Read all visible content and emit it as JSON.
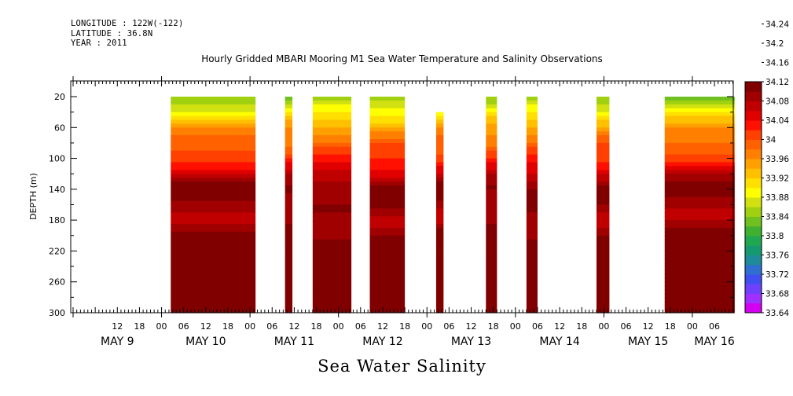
{
  "header": {
    "longitude": "LONGITUDE : 122W(-122)",
    "latitude": "LATITUDE : 36.8N",
    "year": "YEAR : 2011",
    "title": "Hourly Gridded MBARI Mooring M1 Sea Water Temperature and Salinity Observations"
  },
  "footer": {
    "subtitle": "Sea Water Salinity"
  },
  "chart_data": {
    "type": "heatmap",
    "title": "Hourly Gridded MBARI Mooring M1 Sea Water Temperature and Salinity Observations",
    "subtitle": "Sea Water Salinity",
    "ylabel": "DEPTH (m)",
    "xlabel": "",
    "y_inverted": true,
    "ylim": [
      300,
      10
    ],
    "y_ticks": [
      20,
      60,
      100,
      140,
      180,
      220,
      260,
      300
    ],
    "x_hours_range": [
      0,
      179
    ],
    "hour_tick_labels": [
      "12",
      "18",
      "00",
      "06",
      "12",
      "18",
      "00",
      "06",
      "12",
      "18",
      "00",
      "06",
      "12",
      "18",
      "00",
      "06",
      "12",
      "18",
      "00",
      "06",
      "12",
      "18",
      "00",
      "06",
      "12",
      "18",
      "00",
      "06"
    ],
    "hour_tick_hours": [
      12,
      18,
      24,
      30,
      36,
      42,
      48,
      54,
      60,
      66,
      72,
      78,
      84,
      90,
      96,
      102,
      108,
      114,
      120,
      126,
      132,
      138,
      144,
      150,
      156,
      162,
      168,
      174
    ],
    "day_labels": [
      "MAY 9",
      "MAY 10",
      "MAY 11",
      "MAY 12",
      "MAY 13",
      "MAY 14",
      "MAY 15",
      "MAY 16"
    ],
    "day_label_hours": [
      12,
      36,
      60,
      84,
      108,
      132,
      156,
      174
    ],
    "colorbar": {
      "labels": [
        "34.24",
        "34.2",
        "34.16",
        "34.12",
        "34.08",
        "34.04",
        "34",
        "33.96",
        "33.92",
        "33.88",
        "33.84",
        "33.8",
        "33.76",
        "33.72",
        "33.68",
        "33.64"
      ],
      "min": 33.64,
      "max": 34.26,
      "step": 0.02,
      "colors": [
        "#d400f0",
        "#a030ff",
        "#7040ff",
        "#4050f0",
        "#2f6fd0",
        "#1f8a9a",
        "#159a70",
        "#20a850",
        "#40b030",
        "#70c020",
        "#a0d010",
        "#d0e010",
        "#ffff00",
        "#ffe000",
        "#ffc000",
        "#ffa000",
        "#ff8000",
        "#ff6000",
        "#ff4000",
        "#ff1000",
        "#e00000",
        "#c00000",
        "#a00000",
        "#800000"
      ]
    },
    "data_segments": [
      {
        "start_hour": 26.5,
        "end_hour": 49.5,
        "top_depth": 20
      },
      {
        "start_hour": 57.5,
        "end_hour": 59.5,
        "top_depth": 20
      },
      {
        "start_hour": 65,
        "end_hour": 75.5,
        "top_depth": 20
      },
      {
        "start_hour": 80.5,
        "end_hour": 90,
        "top_depth": 20
      },
      {
        "start_hour": 98.5,
        "end_hour": 100.5,
        "top_depth": 40
      },
      {
        "start_hour": 112,
        "end_hour": 115,
        "top_depth": 20
      },
      {
        "start_hour": 123,
        "end_hour": 126,
        "top_depth": 20
      },
      {
        "start_hour": 142,
        "end_hour": 145.5,
        "top_depth": 20
      },
      {
        "start_hour": 160.5,
        "end_hour": 179.5,
        "top_depth": 20
      }
    ],
    "typical_profile": [
      {
        "depth": 20,
        "value": 33.84
      },
      {
        "depth": 60,
        "value": 33.95
      },
      {
        "depth": 100,
        "value": 34.02
      },
      {
        "depth": 140,
        "value": 34.11
      },
      {
        "depth": 180,
        "value": 34.08
      },
      {
        "depth": 220,
        "value": 34.13
      },
      {
        "depth": 260,
        "value": 34.21
      },
      {
        "depth": 300,
        "value": 34.12
      }
    ]
  }
}
